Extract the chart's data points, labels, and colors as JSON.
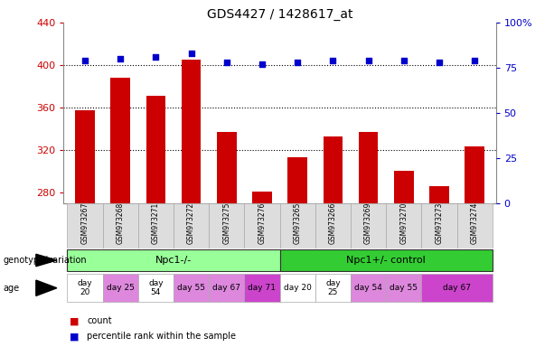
{
  "title": "GDS4427 / 1428617_at",
  "samples": [
    "GSM973267",
    "GSM973268",
    "GSM973271",
    "GSM973272",
    "GSM973275",
    "GSM973276",
    "GSM973265",
    "GSM973266",
    "GSM973269",
    "GSM973270",
    "GSM973273",
    "GSM973274"
  ],
  "count_values": [
    357,
    388,
    371,
    405,
    337,
    281,
    313,
    333,
    337,
    300,
    286,
    323
  ],
  "percentile_values": [
    79,
    80,
    81,
    83,
    78,
    77,
    78,
    79,
    79,
    79,
    78,
    79
  ],
  "ylim_left": [
    270,
    440
  ],
  "ylim_right": [
    0,
    100
  ],
  "yticks_left": [
    280,
    320,
    360,
    400,
    440
  ],
  "yticks_right": [
    0,
    25,
    50,
    75,
    100
  ],
  "bar_color": "#cc0000",
  "percentile_color": "#0000cc",
  "background_color": "#ffffff",
  "plot_bg_color": "#ffffff",
  "genotype_groups": [
    {
      "label": "Npc1-/-",
      "start": 0,
      "end": 5,
      "color": "#99ff99"
    },
    {
      "label": "Npc1+/- control",
      "start": 6,
      "end": 11,
      "color": "#33cc33"
    }
  ],
  "age_spans": [
    {
      "label": "day\n20",
      "start": 0,
      "end": 0,
      "color": "#ffffff"
    },
    {
      "label": "day 25",
      "start": 1,
      "end": 1,
      "color": "#dd88dd"
    },
    {
      "label": "day\n54",
      "start": 2,
      "end": 2,
      "color": "#ffffff"
    },
    {
      "label": "day 55",
      "start": 3,
      "end": 3,
      "color": "#dd88dd"
    },
    {
      "label": "day 67",
      "start": 4,
      "end": 4,
      "color": "#dd88dd"
    },
    {
      "label": "day 71",
      "start": 5,
      "end": 5,
      "color": "#cc44cc"
    },
    {
      "label": "day 20",
      "start": 6,
      "end": 6,
      "color": "#ffffff"
    },
    {
      "label": "day\n25",
      "start": 7,
      "end": 7,
      "color": "#ffffff"
    },
    {
      "label": "day 54",
      "start": 8,
      "end": 8,
      "color": "#dd88dd"
    },
    {
      "label": "day 55",
      "start": 9,
      "end": 9,
      "color": "#dd88dd"
    },
    {
      "label": "day 67",
      "start": 10,
      "end": 11,
      "color": "#cc44cc"
    }
  ],
  "legend_items": [
    {
      "label": "count",
      "color": "#cc0000"
    },
    {
      "label": "percentile rank within the sample",
      "color": "#0000cc"
    }
  ]
}
